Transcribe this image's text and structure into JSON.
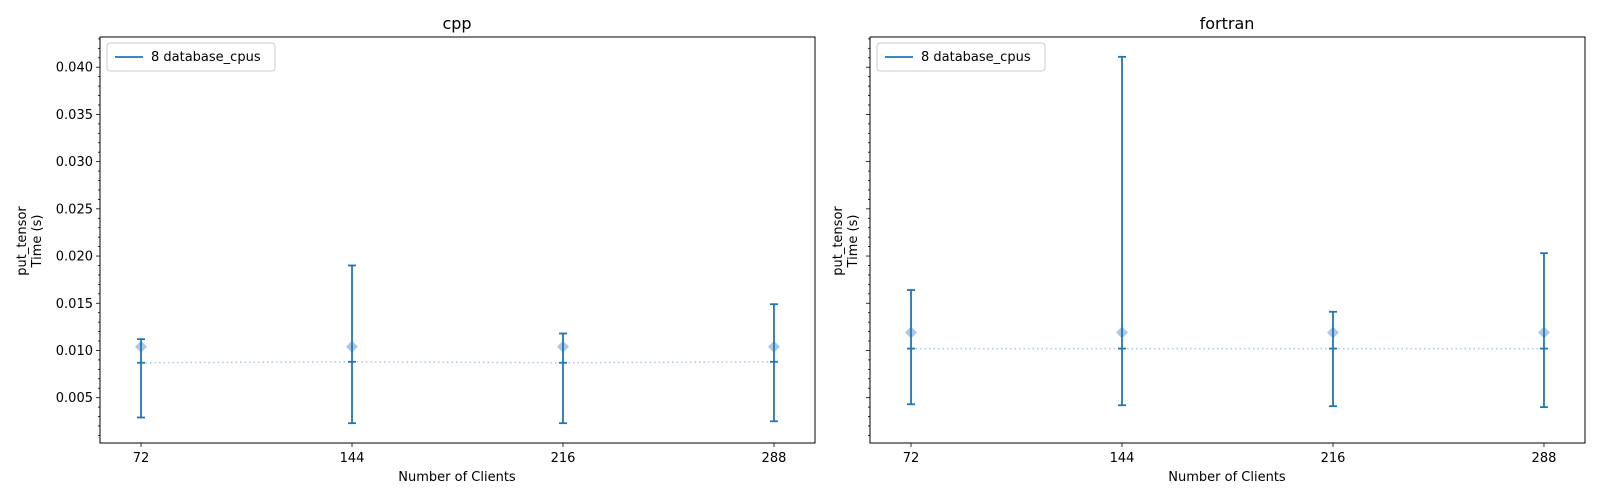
{
  "chart_data": [
    {
      "type": "errorbar",
      "title": "cpp",
      "xlabel": "Number of Clients",
      "ylabel_lines": [
        "put_tensor",
        "Time (s)"
      ],
      "x_categories": [
        "72",
        "144",
        "216",
        "288"
      ],
      "x": [
        72,
        144,
        216,
        288
      ],
      "xlim": [
        58,
        302
      ],
      "ylim": [
        0.0002,
        0.0432
      ],
      "yticks": [
        0.005,
        0.01,
        0.015,
        0.02,
        0.025,
        0.03,
        0.035,
        0.04
      ],
      "ytick_labels": [
        "0.005",
        "0.010",
        "0.015",
        "0.020",
        "0.025",
        "0.030",
        "0.035",
        "0.040"
      ],
      "show_ytick_labels": true,
      "legend": {
        "position": "upper-left",
        "entries": [
          "8 database_cpus"
        ]
      },
      "series": [
        {
          "name": "8 database_cpus",
          "color": "#1f77b4",
          "marker_color": "#aec7e8",
          "median": [
            0.0087,
            0.0088,
            0.0087,
            0.0088
          ],
          "mean_marker": [
            0.0104,
            0.0104,
            0.0104,
            0.0104
          ],
          "min": [
            0.0029,
            0.0023,
            0.0023,
            0.0025
          ],
          "max": [
            0.0112,
            0.019,
            0.0118,
            0.0149
          ]
        }
      ]
    },
    {
      "type": "errorbar",
      "title": "fortran",
      "xlabel": "Number of Clients",
      "ylabel_lines": [
        "put_tensor",
        "Time (s)"
      ],
      "x_categories": [
        "72",
        "144",
        "216",
        "288"
      ],
      "x": [
        72,
        144,
        216,
        288
      ],
      "xlim": [
        58,
        302
      ],
      "ylim": [
        0.0002,
        0.0432
      ],
      "yticks": [
        0.005,
        0.01,
        0.015,
        0.02,
        0.025,
        0.03,
        0.035,
        0.04
      ],
      "ytick_labels": [
        "0.005",
        "0.010",
        "0.015",
        "0.020",
        "0.025",
        "0.030",
        "0.035",
        "0.040"
      ],
      "show_ytick_labels": false,
      "legend": {
        "position": "upper-left",
        "entries": [
          "8 database_cpus"
        ]
      },
      "series": [
        {
          "name": "8 database_cpus",
          "color": "#1f77b4",
          "marker_color": "#aec7e8",
          "median": [
            0.0102,
            0.0102,
            0.0102,
            0.0102
          ],
          "mean_marker": [
            0.0119,
            0.0119,
            0.0119,
            0.0119
          ],
          "min": [
            0.0043,
            0.0042,
            0.0041,
            0.004
          ],
          "max": [
            0.0164,
            0.0411,
            0.0141,
            0.0203
          ]
        }
      ]
    }
  ]
}
